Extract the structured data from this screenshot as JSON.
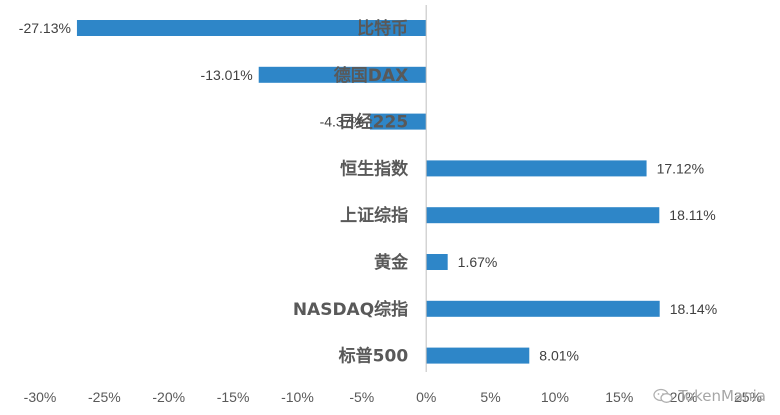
{
  "chart_data": {
    "type": "bar",
    "orientation": "horizontal",
    "title": "",
    "xlabel": "",
    "ylabel": "",
    "categories": [
      "比特币",
      "德国DAX",
      "日经225",
      "恒生指数",
      "上证综指",
      "黄金",
      "NASDAQ综指",
      "标普500"
    ],
    "values": [
      -27.13,
      -13.01,
      -4.37,
      17.12,
      18.11,
      1.67,
      18.14,
      8.01
    ],
    "value_labels": [
      "-27.13%",
      "-13.01%",
      "-4.37%",
      "17.12%",
      "18.11%",
      "1.67%",
      "18.14%",
      "8.01%"
    ],
    "xlim": [
      -30,
      25
    ],
    "x_ticks": [
      -30,
      -25,
      -20,
      -15,
      -10,
      -5,
      0,
      5,
      10,
      15,
      20,
      25
    ],
    "x_tick_labels": [
      "-30%",
      "-25%",
      "-20%",
      "-15%",
      "-10%",
      "-5%",
      "0%",
      "5%",
      "10%",
      "15%",
      "20%",
      "25%"
    ],
    "bar_color": "#2e86c8",
    "grid": false,
    "legend": "none"
  },
  "watermark": {
    "text": "TokenMania",
    "icon": "wechat-icon"
  }
}
